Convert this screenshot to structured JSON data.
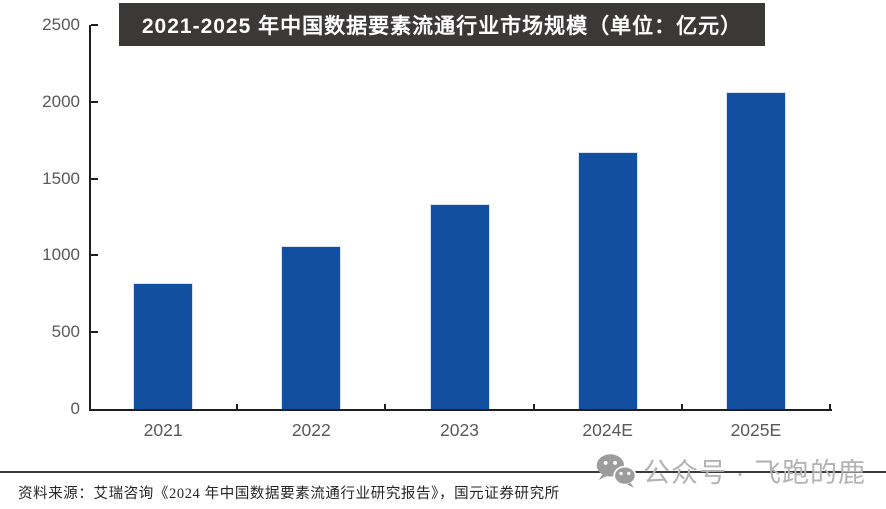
{
  "chart_data": {
    "type": "bar",
    "title": "2021-2025 年中国数据要素流通行业市场规模（单位：亿元）",
    "categories": [
      "2021",
      "2022",
      "2023",
      "2024E",
      "2025E"
    ],
    "values": [
      820,
      1063,
      1337,
      1673,
      2062
    ],
    "unit": "亿元",
    "xlabel": "",
    "ylabel": "",
    "ylim": [
      0,
      2500
    ],
    "y_ticks": [
      0,
      500,
      1000,
      1500,
      2000,
      2500
    ],
    "grid": false,
    "legend_position": "none",
    "bar_color": "#124FA1",
    "bar_edge_color": "#d9e2f3",
    "axis_line_color": "#1f1f1f",
    "axis_label_color": "#595959",
    "banner_bg": "#3B3838",
    "banner_text_color": "#FFFFFF"
  },
  "watermark": {
    "icon": "wechat-icon",
    "text": "公众号 · 飞跑的鹿",
    "text_color": "#b3b3b3",
    "icon_color": "#9c9c9c"
  },
  "footer": {
    "source_text": "资料来源：艾瑞咨询《2024 年中国数据要素流通行业研究报告》，国元证券研究所"
  }
}
